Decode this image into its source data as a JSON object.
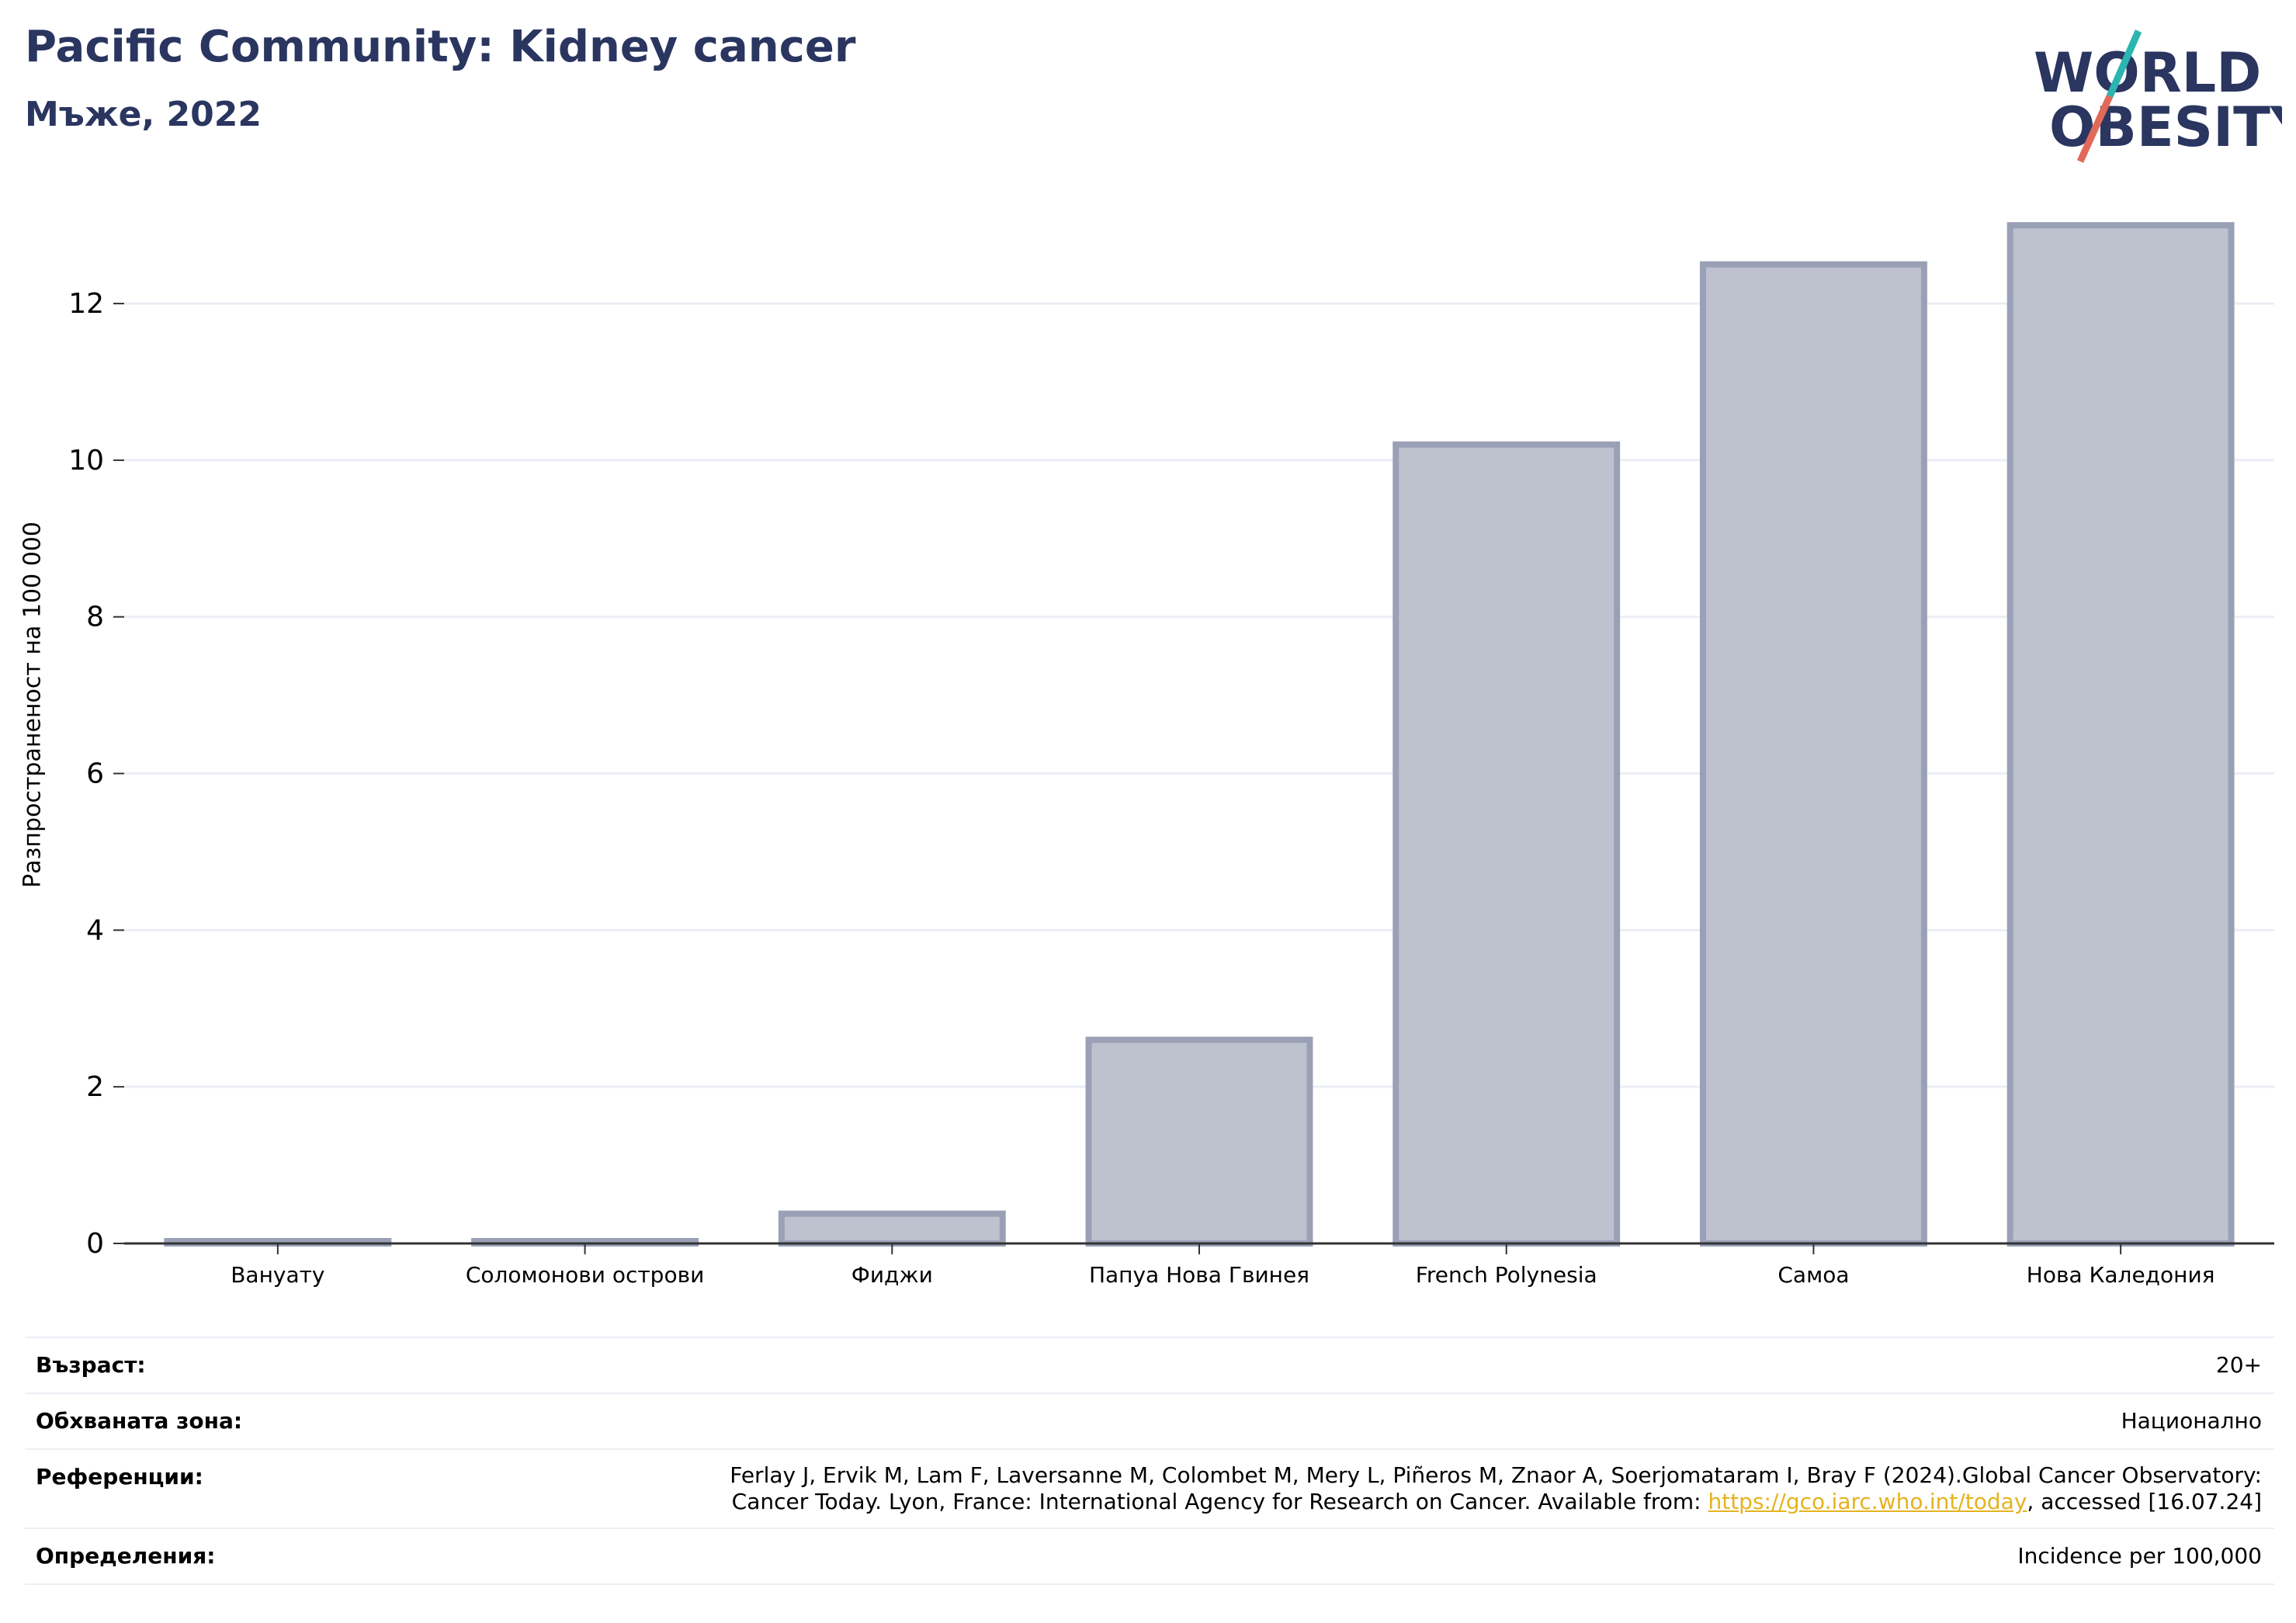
{
  "header": {
    "title": "Pacific Community: Kidney cancer",
    "subtitle": "Мъже, 2022"
  },
  "logo": {
    "line1": "WORLD",
    "line2": "OBESITY",
    "colors": {
      "text": "#2a3560",
      "slash_top": "#2bb5b0",
      "slash_bottom": "#e06a5a"
    }
  },
  "chart_data": {
    "type": "bar",
    "title": "Pacific Community: Kidney cancer",
    "subtitle": "Мъже, 2022",
    "ylabel": "Разпространеност  на 100 000",
    "xlabel": "",
    "categories": [
      "Вануату",
      "Соломонови острови",
      "Фиджи",
      "Папуа Нова Гвинея",
      "French Polynesia",
      "Самоа",
      "Нова Каледония"
    ],
    "values": [
      0.02,
      0.02,
      0.38,
      2.6,
      10.2,
      12.5,
      13.0
    ],
    "ylim": [
      0,
      13.2
    ],
    "yticks": [
      0,
      2,
      4,
      6,
      8,
      10,
      12
    ],
    "grid": true,
    "colors": {
      "bar_fill": "#bec2cf",
      "bar_stroke": "#9aa0b6",
      "grid": "#eceef5",
      "axis": "#333333"
    }
  },
  "info": [
    {
      "label": "Възраст:",
      "value": "20+"
    },
    {
      "label": "Обхваната зона:",
      "value": "Национално"
    },
    {
      "label": "Референции:",
      "value_line1": "Ferlay J, Ervik M, Lam F, Laversanne M, Colombet M, Mery L, Piñeros M, Znaor A, Soerjomataram I, Bray F (2024).Global Cancer Observatory:",
      "value_line2_pre": "Cancer Today. Lyon, France: International Agency for Research on Cancer. Available from: ",
      "link": "https://gco.iarc.who.int/today",
      "value_line2_post": ", accessed [16.07.24]"
    },
    {
      "label": "Определения:",
      "value": "Incidence per 100,000"
    }
  ]
}
